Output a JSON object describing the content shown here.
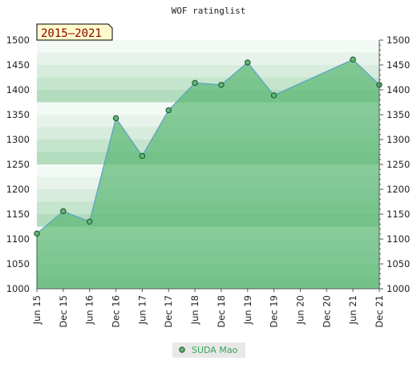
{
  "chart_data": {
    "type": "area",
    "title": "WOF ratinglist",
    "badge": "2015–2021",
    "x": [
      "Jun 15",
      "Dec 15",
      "Jun 16",
      "Dec 16",
      "Jun 17",
      "Dec 17",
      "Jun 18",
      "Dec 18",
      "Jun 19",
      "Dec 19",
      "Jun 21",
      "Dec 21"
    ],
    "x_ticks": [
      "Jun 15",
      "Dec 15",
      "Jun 16",
      "Dec 16",
      "Jun 17",
      "Dec 17",
      "Jun 18",
      "Dec 18",
      "Jun 19",
      "Dec 19",
      "Jun 20",
      "Dec 20",
      "Jun 21",
      "Dec 21"
    ],
    "series": [
      {
        "name": "SUDA Mao",
        "values": [
          1111,
          1156,
          1135,
          1343,
          1267,
          1359,
          1414,
          1410,
          1455,
          1389,
          1461,
          1410
        ]
      }
    ],
    "y_ticks": [
      1000,
      1050,
      1100,
      1150,
      1200,
      1250,
      1300,
      1350,
      1400,
      1450,
      1500
    ],
    "ylim": [
      1000,
      1500
    ],
    "grid": false,
    "legend": "bottom-center",
    "colors": {
      "area": "#5cb874",
      "line": "#5aa0c8",
      "marker_fill": "#5cb874",
      "legend_text": "#3aa35a",
      "badge_bg": "#fffacd",
      "badge_text": "#8b0000"
    }
  }
}
